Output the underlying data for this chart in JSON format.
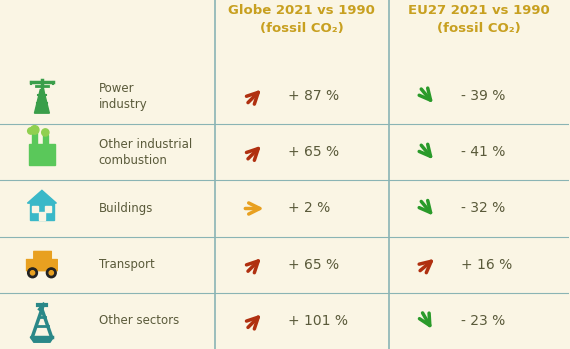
{
  "background_color": "#faf5e4",
  "header_col1": "Globe 2021 vs 1990\n(fossil CO₂)",
  "header_col2": "EU27 2021 vs 1990\n(fossil CO₂)",
  "header_color": "#c8a020",
  "row_divider_color": "#8ab4b4",
  "col_divider_color": "#8ab4b4",
  "sectors": [
    "Power\nindustry",
    "Other industrial\ncombustion",
    "Buildings",
    "Transport",
    "Other sectors"
  ],
  "sector_icon_colors": [
    "#3a9e4a",
    "#5ac85a",
    "#3ab8c8",
    "#e8a020",
    "#2a8888"
  ],
  "globe_values": [
    "+ 87 %",
    "+ 65 %",
    "+ 2 %",
    "+ 65 %",
    "+ 101 %"
  ],
  "globe_arrow_angles": [
    45,
    45,
    0,
    45,
    45
  ],
  "globe_arrow_colors": [
    "#b03010",
    "#b03010",
    "#e8a020",
    "#b03010",
    "#b03010"
  ],
  "eu27_values": [
    "- 39 %",
    "- 41 %",
    "- 32 %",
    "+ 16 %",
    "- 23 %"
  ],
  "eu27_arrow_angles": [
    -50,
    -50,
    -50,
    40,
    -60
  ],
  "eu27_arrow_colors": [
    "#2a9a2a",
    "#2a9a2a",
    "#2a9a2a",
    "#b03010",
    "#2a9a2a"
  ],
  "text_color": "#5a5a3a",
  "value_text_color": "#5a6a5a"
}
